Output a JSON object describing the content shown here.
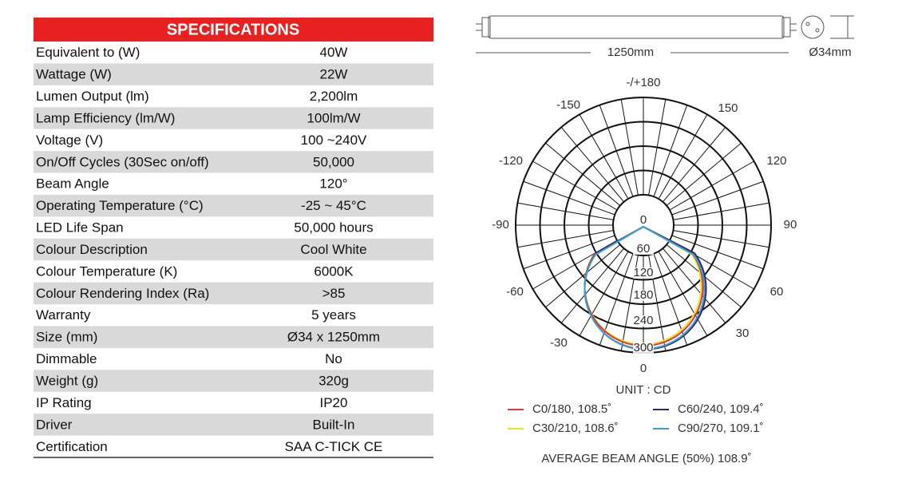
{
  "header": {
    "title": "SPECIFICATIONS"
  },
  "table": {
    "rows": [
      [
        "Equivalent to (W)",
        "40W"
      ],
      [
        "Wattage (W)",
        "22W"
      ],
      [
        "Lumen Output (lm)",
        "2,200lm"
      ],
      [
        "Lamp Efficiency (lm/W)",
        "100lm/W"
      ],
      [
        "Voltage (V)",
        "100 ~240V"
      ],
      [
        "On/Off Cycles (30Sec on/off)",
        "50,000"
      ],
      [
        "Beam Angle",
        "120°"
      ],
      [
        "Operating Temperature (°C)",
        "-25 ~ 45°C"
      ],
      [
        "LED Life Span",
        "50,000 hours"
      ],
      [
        "Colour Description",
        "Cool White"
      ],
      [
        "Colour Temperature (K)",
        "6000K"
      ],
      [
        "Colour Rendering Index (Ra)",
        ">85"
      ],
      [
        "Warranty",
        "5 years"
      ],
      [
        "Size (mm)",
        "Ø34 x 1250mm"
      ],
      [
        "Dimmable",
        "No"
      ],
      [
        "Weight (g)",
        "320g"
      ],
      [
        "IP Rating",
        "IP20"
      ],
      [
        "Driver",
        "Built-In"
      ],
      [
        "Certification",
        "SAA  C-TICK  CE"
      ]
    ]
  },
  "dimensions": {
    "length": "1250mm",
    "diameter": "Ø34mm"
  },
  "polar": {
    "angle_labels": [
      "-/+180",
      "-150",
      "150",
      "-120",
      "120",
      "-90",
      "90",
      "-60",
      "60",
      "-30",
      "30",
      "0"
    ],
    "radial_labels": [
      "0",
      "60",
      "120",
      "180",
      "240",
      "300"
    ],
    "unit": "UNIT : CD",
    "legend": [
      {
        "name": "C0/180, 108.5˚",
        "color": "#d93a3a"
      },
      {
        "name": "C60/240, 109.4˚",
        "color": "#2a2a6a"
      },
      {
        "name": "C30/210, 108.6˚",
        "color": "#f0e020"
      },
      {
        "name": "C90/270, 109.1˚",
        "color": "#3aa0d8"
      }
    ],
    "average": "AVERAGE BEAM ANGLE (50%) 108.9˚"
  }
}
